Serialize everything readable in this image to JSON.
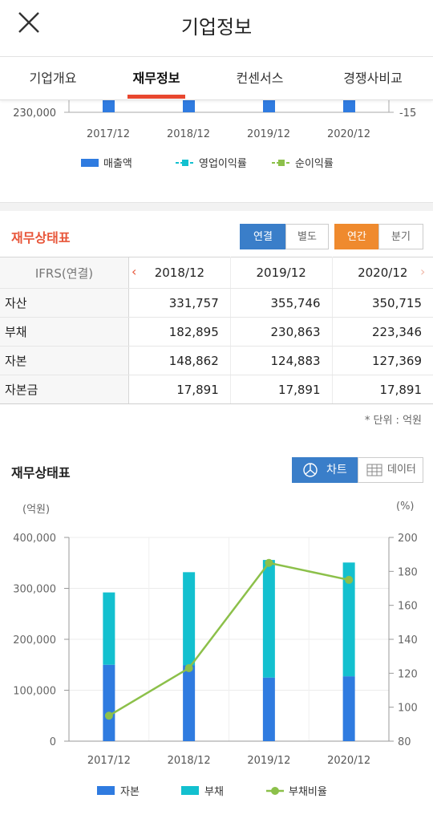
{
  "header": {
    "title": "기업정보",
    "close_icon": "close-icon"
  },
  "tabs": [
    {
      "label": "기업개요",
      "active": false
    },
    {
      "label": "재무정보",
      "active": true
    },
    {
      "label": "컨센서스",
      "active": false
    },
    {
      "label": "경쟁사비교",
      "active": false
    }
  ],
  "top_chart": {
    "left_tick_label": "230,000",
    "right_tick_label": "-15",
    "x_labels": [
      "2017/12",
      "2018/12",
      "2019/12",
      "2020/12"
    ],
    "legend": [
      "매출액",
      "영업이익률",
      "순이익률"
    ],
    "colors": {
      "sales": "#2f7be0",
      "op_margin": "#13c0cf",
      "net_margin": "#8cc04a"
    }
  },
  "balance_sheet": {
    "title": "재무상태표",
    "toggle_consolidated": "연결",
    "toggle_separate": "별도",
    "toggle_annual": "연간",
    "toggle_quarterly": "분기",
    "table": {
      "header_label": "IFRS(연결)",
      "columns": [
        "2018/12",
        "2019/12",
        "2020/12"
      ],
      "rows": [
        {
          "label": "자산",
          "values": [
            "331,757",
            "355,746",
            "350,715"
          ]
        },
        {
          "label": "부채",
          "values": [
            "182,895",
            "230,863",
            "223,346"
          ]
        },
        {
          "label": "자본",
          "values": [
            "148,862",
            "124,883",
            "127,369"
          ]
        },
        {
          "label": "자본금",
          "values": [
            "17,891",
            "17,891",
            "17,891"
          ]
        }
      ]
    },
    "unit_note": "* 단위 : 억원"
  },
  "chart_section": {
    "title": "재무상태표",
    "chart_button": "차트",
    "data_button": "데이터",
    "left_unit": "(억원)",
    "right_unit": "(%)"
  },
  "chart_data": {
    "type": "bar",
    "stacked": true,
    "categories": [
      "2017/12",
      "2018/12",
      "2019/12",
      "2020/12"
    ],
    "series": [
      {
        "name": "자본",
        "type": "bar",
        "axis": "left",
        "color": "#2f7be0",
        "values": [
          150000,
          148862,
          124883,
          127369
        ]
      },
      {
        "name": "부채",
        "type": "bar",
        "axis": "left",
        "color": "#13c0cf",
        "values": [
          142000,
          182895,
          230863,
          223346
        ]
      },
      {
        "name": "부채비율",
        "type": "line",
        "axis": "right",
        "color": "#8cc04a",
        "values": [
          95,
          123,
          185,
          175
        ]
      }
    ],
    "y_left": {
      "ylim": [
        0,
        400000
      ],
      "ticks": [
        "0",
        "100,000",
        "200,000",
        "300,000",
        "400,000"
      ]
    },
    "y_right": {
      "ylim": [
        80,
        200
      ],
      "ticks": [
        "80",
        "100",
        "120",
        "140",
        "160",
        "180",
        "200"
      ]
    },
    "grid": true,
    "legend_position": "bottom"
  }
}
